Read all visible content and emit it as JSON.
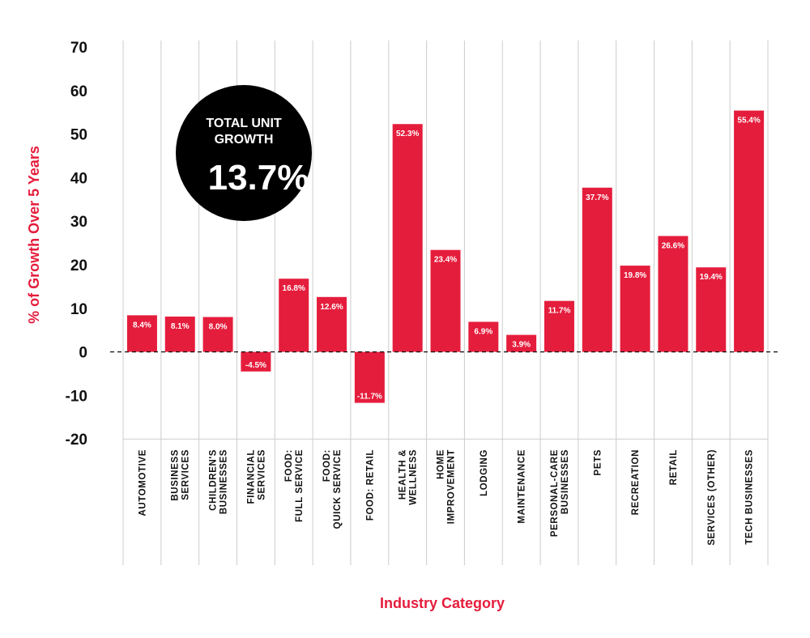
{
  "colors": {
    "bar": "#e51d3c",
    "grid": "#cccccc",
    "text": "#111111",
    "title": "#e51d3c",
    "badge": "#000000"
  },
  "badge": {
    "line1": "TOTAL UNIT",
    "line2": "GROWTH",
    "value": "13.7%"
  },
  "chart_data": {
    "type": "bar",
    "title": "",
    "xlabel": "Industry Category",
    "ylabel": "% of Growth Over 5 Years",
    "ylim": [
      -20,
      70
    ],
    "yticks": [
      70,
      60,
      50,
      40,
      30,
      20,
      10,
      0,
      -10,
      -20
    ],
    "grid": true,
    "categories": [
      "AUTOMOTIVE",
      "BUSINESS SERVICES",
      "CHILDREN'S BUSINESSES",
      "FINANCIAL SERVICES",
      "FOOD: FULL SERVICE",
      "FOOD: QUICK SERVICE",
      "FOOD: RETAIL",
      "HEALTH & WELLNESS",
      "HOME IMPROVEMENT",
      "LODGING",
      "MAINTENANCE",
      "PERSONAL-CARE BUSINESSES",
      "PETS",
      "RECREATION",
      "RETAIL",
      "SERVICES (OTHER)",
      "TECH BUSINESSES"
    ],
    "category_lines": [
      [
        "AUTOMOTIVE"
      ],
      [
        "BUSINESS",
        "SERVICES"
      ],
      [
        "CHILDREN'S",
        "BUSINESSES"
      ],
      [
        "FINANCIAL",
        "SERVICES"
      ],
      [
        "FOOD:",
        "FULL SERVICE"
      ],
      [
        "FOOD:",
        "QUICK SERVICE"
      ],
      [
        "FOOD: RETAIL"
      ],
      [
        "HEALTH &",
        "WELLNESS"
      ],
      [
        "HOME",
        "IMPROVEMENT"
      ],
      [
        "LODGING"
      ],
      [
        "MAINTENANCE"
      ],
      [
        "PERSONAL-CARE",
        "BUSINESSES"
      ],
      [
        "PETS"
      ],
      [
        "RECREATION"
      ],
      [
        "RETAIL"
      ],
      [
        "SERVICES (OTHER)"
      ],
      [
        "TECH BUSINESSES"
      ]
    ],
    "values": [
      8.4,
      8.1,
      8.0,
      -4.5,
      16.8,
      12.6,
      -11.7,
      52.3,
      23.4,
      6.9,
      3.9,
      11.7,
      37.7,
      19.8,
      26.6,
      19.4,
      55.4
    ],
    "data_labels": [
      "8.4%",
      "8.1%",
      "8.0%",
      "-4.5%",
      "16.8%",
      "12.6%",
      "-11.7%",
      "52.3%",
      "23.4%",
      "6.9%",
      "3.9%",
      "11.7%",
      "37.7%",
      "19.8%",
      "26.6%",
      "19.4%",
      "55.4%"
    ]
  }
}
